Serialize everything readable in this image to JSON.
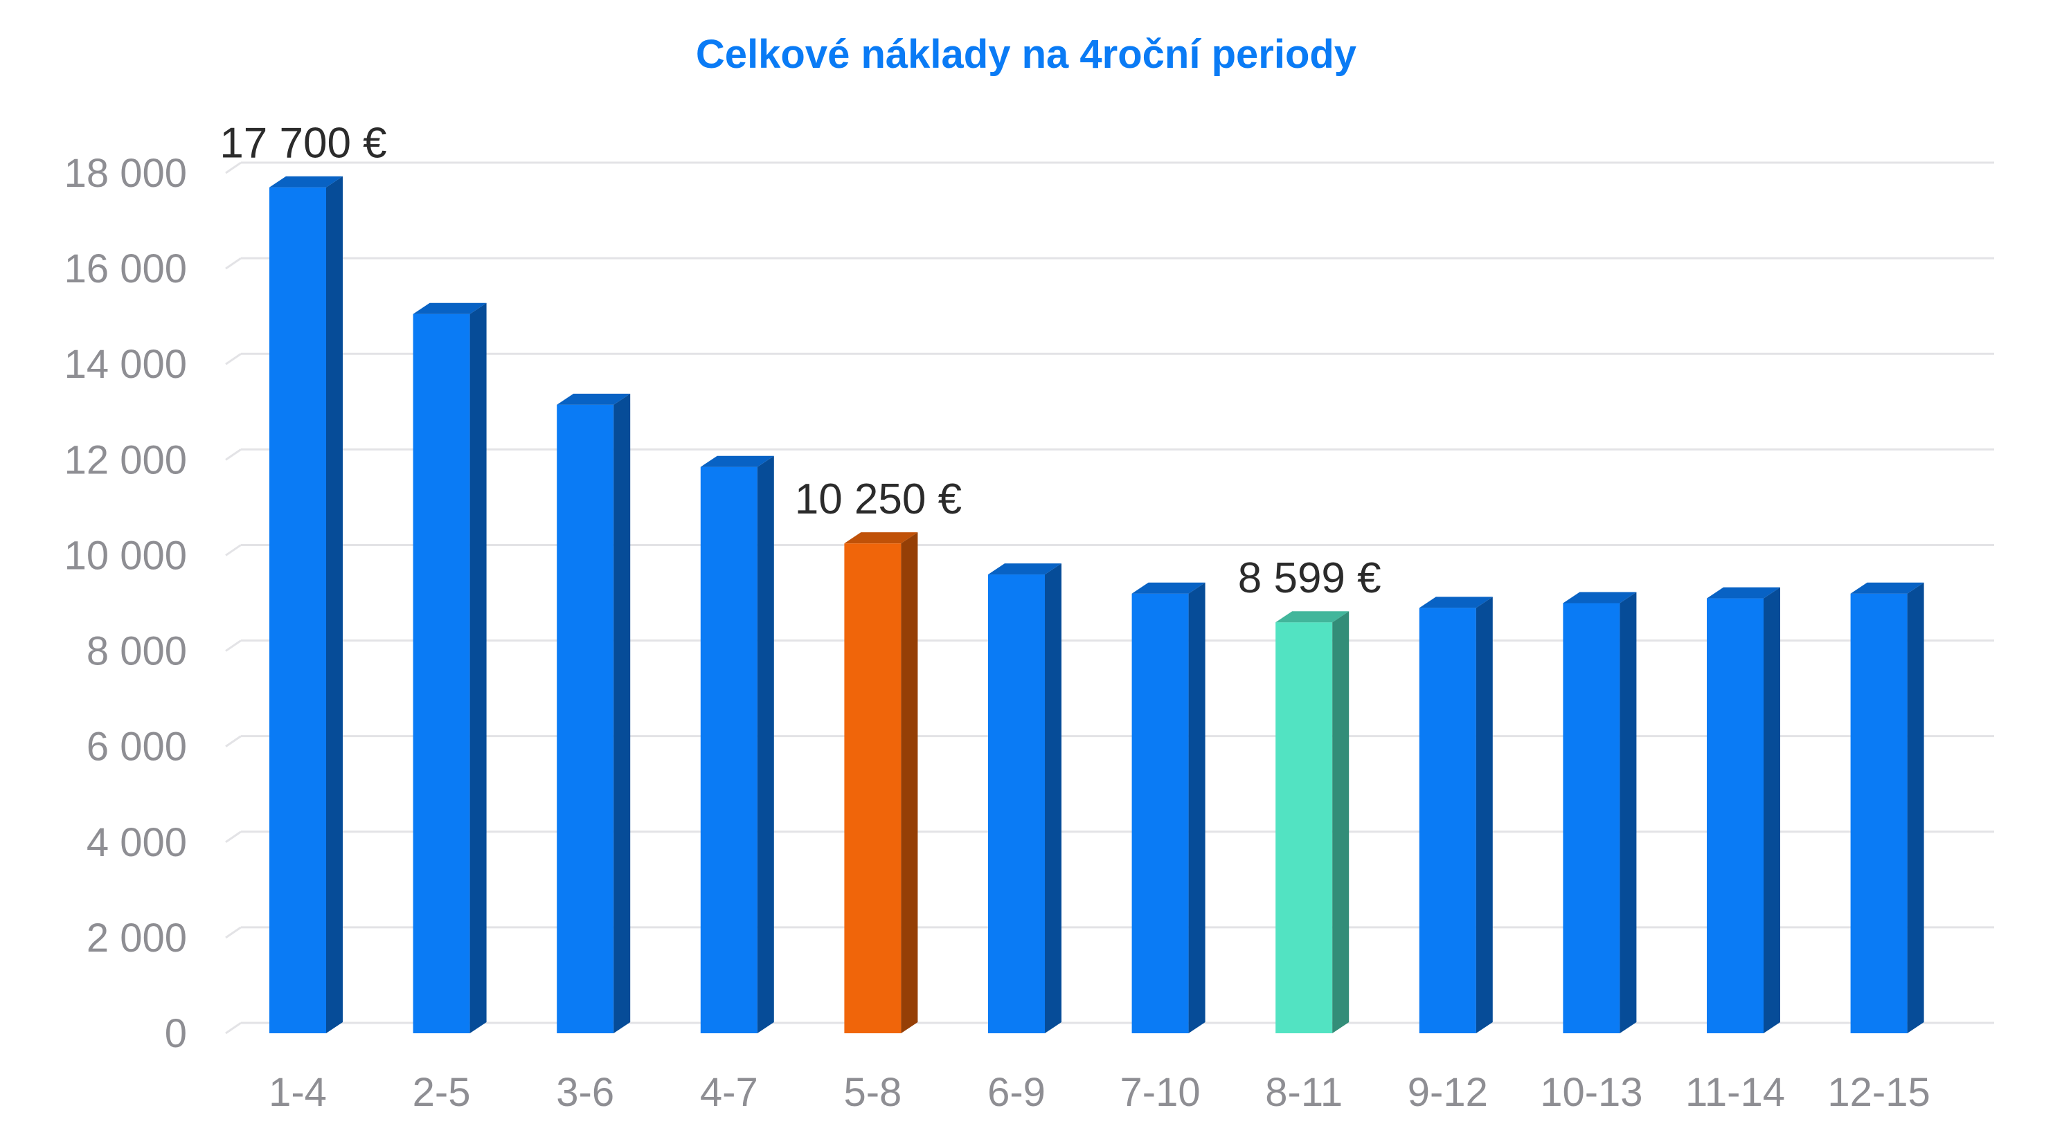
{
  "chart_data": {
    "type": "bar",
    "style": "3d-column",
    "title": "Celkové náklady na 4roční periody",
    "xlabel": "",
    "ylabel": "",
    "categories": [
      "1-4",
      "2-5",
      "3-6",
      "4-7",
      "5-8",
      "6-9",
      "7-10",
      "8-11",
      "9-12",
      "10-13",
      "11-14",
      "12-15"
    ],
    "series": [
      {
        "values": [
          17700,
          15050,
          13150,
          11850,
          10250,
          9600,
          9200,
          8599,
          8900,
          9000,
          9100,
          9200
        ]
      }
    ],
    "bar_colors": [
      "#0a7bf5",
      "#0a7bf5",
      "#0a7bf5",
      "#0a7bf5",
      "#f0650a",
      "#0a7bf5",
      "#0a7bf5",
      "#52e3c2",
      "#0a7bf5",
      "#0a7bf5",
      "#0a7bf5",
      "#0a7bf5"
    ],
    "data_labels": [
      {
        "category": "1-4",
        "text": "17 700 €"
      },
      {
        "category": "5-8",
        "text": "10 250 €"
      },
      {
        "category": "8-11",
        "text": "8 599 €"
      }
    ],
    "yticks": [
      0,
      2000,
      4000,
      6000,
      8000,
      10000,
      12000,
      14000,
      16000,
      18000
    ],
    "ytick_labels": [
      "0",
      "2 000",
      "4 000",
      "6 000",
      "8 000",
      "10 000",
      "12 000",
      "14 000",
      "16 000",
      "18 000"
    ],
    "ylim": [
      0,
      18000
    ],
    "grid": true,
    "legend": "none",
    "colors": {
      "title": "#0a7bf5",
      "grid": "#e3e3e6",
      "tick_label": "#8e8e93",
      "data_label": "#2b2b2b"
    }
  }
}
